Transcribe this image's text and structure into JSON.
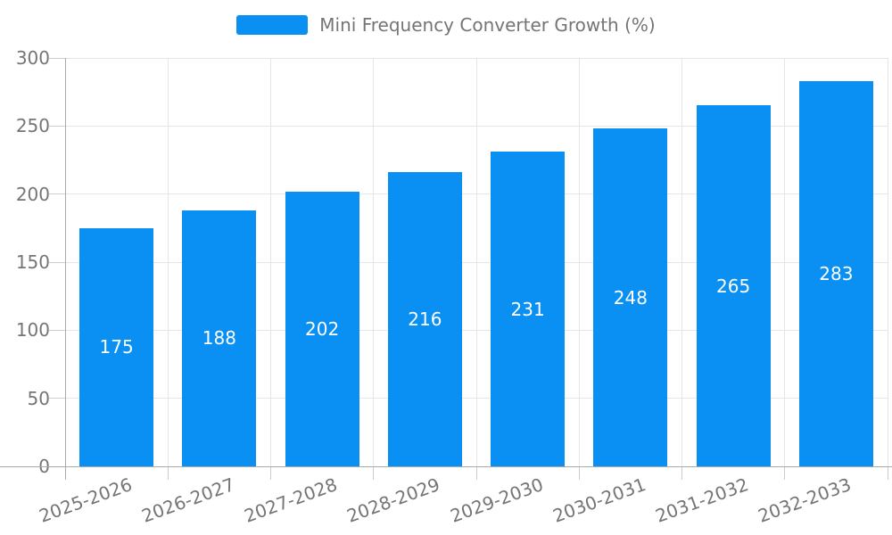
{
  "legend": {
    "label": "Mini Frequency Converter Growth (%)"
  },
  "chart_data": {
    "type": "bar",
    "title": "Mini Frequency Converter Growth (%)",
    "categories": [
      "2025-2026",
      "2026-2027",
      "2027-2028",
      "2028-2029",
      "2029-2030",
      "2030-2031",
      "2031-2032",
      "2032-2033"
    ],
    "values": [
      175,
      188,
      202,
      216,
      231,
      248,
      265,
      283
    ],
    "xlabel": "",
    "ylabel": "",
    "ylim": [
      0,
      300
    ],
    "yticks": [
      0,
      50,
      100,
      150,
      200,
      250,
      300
    ],
    "grid": true,
    "legend_position": "top-center",
    "value_labels": "inside-center",
    "xlabel_rotation_deg": -20,
    "colors": {
      "bar": "#0a8ff2",
      "value_label": "#ffffff",
      "axis_text": "#757575",
      "gridline": "#e5e5e5",
      "tick": "#cccccc",
      "axis_line": "#a9a9a9",
      "background": "#ffffff"
    }
  }
}
